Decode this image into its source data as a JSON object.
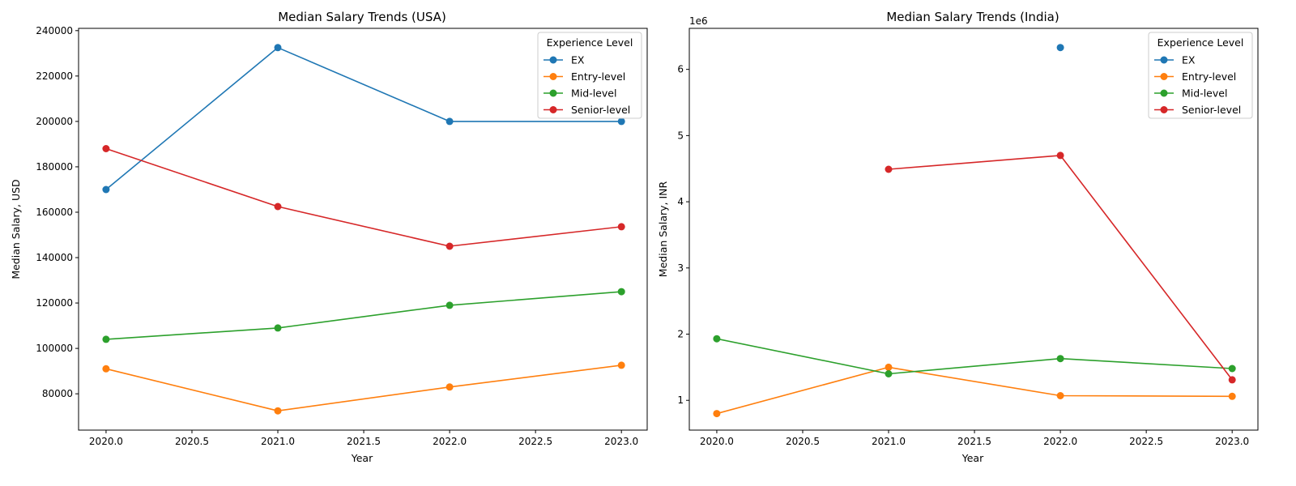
{
  "chart_data": [
    {
      "type": "line",
      "title": "Median Salary Trends (USA)",
      "xlabel": "Year",
      "ylabel": "Median Salary, USD",
      "xlim": [
        2019.84,
        2023.15
      ],
      "ylim": [
        64000,
        241000
      ],
      "xticks": [
        2020.0,
        2020.5,
        2021.0,
        2021.5,
        2022.0,
        2022.5,
        2023.0
      ],
      "xtick_labels": [
        "2020.0",
        "2020.5",
        "2021.0",
        "2021.5",
        "2022.0",
        "2022.5",
        "2023.0"
      ],
      "yticks": [
        80000,
        100000,
        120000,
        140000,
        160000,
        180000,
        200000,
        220000,
        240000
      ],
      "ytick_labels": [
        "80000",
        "100000",
        "120000",
        "140000",
        "160000",
        "180000",
        "200000",
        "220000",
        "240000"
      ],
      "offset_text": "",
      "legend": {
        "title": "Experience Level",
        "position": "top-right"
      },
      "grid": false,
      "series": [
        {
          "name": "EX",
          "color": "#1f77b4",
          "points": [
            [
              2020,
              170000
            ],
            [
              2021,
              232500
            ],
            [
              2022,
              200000
            ],
            [
              2023,
              200000
            ]
          ]
        },
        {
          "name": "Entry-level",
          "color": "#ff7f0e",
          "points": [
            [
              2020,
              91000
            ],
            [
              2021,
              72500
            ],
            [
              2022,
              83000
            ],
            [
              2023,
              92600
            ]
          ]
        },
        {
          "name": "Mid-level",
          "color": "#2ca02c",
          "points": [
            [
              2020,
              104000
            ],
            [
              2021,
              109000
            ],
            [
              2022,
              119000
            ],
            [
              2023,
              125000
            ]
          ]
        },
        {
          "name": "Senior-level",
          "color": "#d62728",
          "points": [
            [
              2020,
              188000
            ],
            [
              2021,
              162500
            ],
            [
              2022,
              145000
            ],
            [
              2023,
              153600
            ]
          ]
        }
      ]
    },
    {
      "type": "line",
      "title": "Median Salary Trends (India)",
      "xlabel": "Year",
      "ylabel": "Median Salary, INR",
      "xlim": [
        2019.84,
        2023.15
      ],
      "ylim": [
        0.55,
        6.62
      ],
      "xticks": [
        2020.0,
        2020.5,
        2021.0,
        2021.5,
        2022.0,
        2022.5,
        2023.0
      ],
      "xtick_labels": [
        "2020.0",
        "2020.5",
        "2021.0",
        "2021.5",
        "2022.0",
        "2022.5",
        "2023.0"
      ],
      "yticks": [
        1,
        2,
        3,
        4,
        5,
        6
      ],
      "ytick_labels": [
        "1",
        "2",
        "3",
        "4",
        "5",
        "6"
      ],
      "offset_text": "1e6",
      "legend": {
        "title": "Experience Level",
        "position": "top-right"
      },
      "grid": false,
      "series": [
        {
          "name": "EX",
          "color": "#1f77b4",
          "points": [
            [
              2022,
              6.33
            ]
          ]
        },
        {
          "name": "Entry-level",
          "color": "#ff7f0e",
          "points": [
            [
              2020,
              0.8
            ],
            [
              2021,
              1.5
            ],
            [
              2022,
              1.07
            ],
            [
              2023,
              1.06
            ]
          ]
        },
        {
          "name": "Mid-level",
          "color": "#2ca02c",
          "points": [
            [
              2020,
              1.93
            ],
            [
              2021,
              1.4
            ],
            [
              2022,
              1.63
            ],
            [
              2023,
              1.48
            ]
          ]
        },
        {
          "name": "Senior-level",
          "color": "#d62728",
          "points": [
            [
              2021,
              4.49
            ],
            [
              2022,
              4.7
            ],
            [
              2023,
              1.31
            ]
          ]
        }
      ]
    }
  ]
}
